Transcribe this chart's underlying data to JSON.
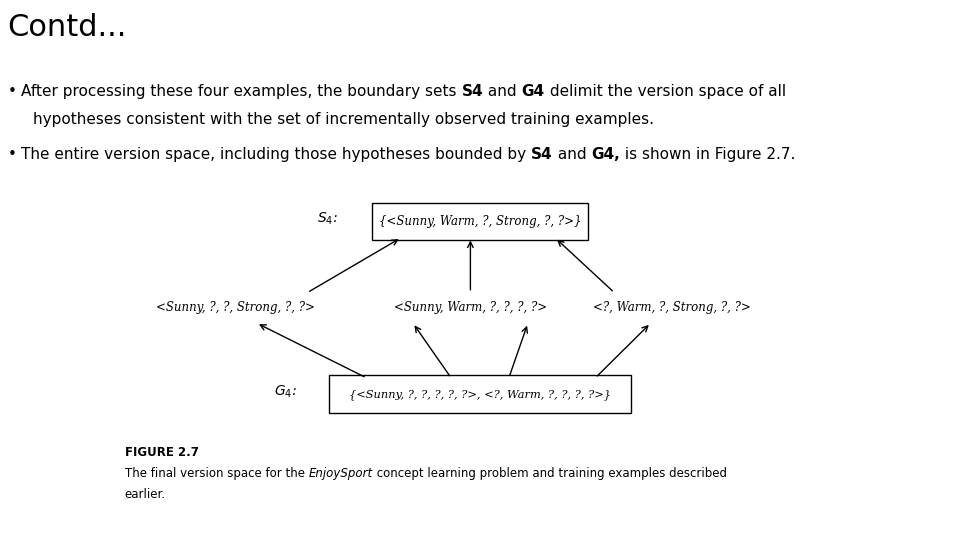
{
  "title": "Contd...",
  "background_color": "#ffffff",
  "text_color": "#000000",
  "s4_content": "{<Sunny, Warm, ?, Strong, ?, ?>}",
  "mid_left": "<Sunny, ?, ?, Strong, ?, ?>",
  "mid_center": "<Sunny, Warm, ?, ?, ?, ?>",
  "mid_right": "<?, Warm, ?, Strong, ?, ?>",
  "g4_content": "{<Sunny, ?, ?, ?, ?, ?>, <?, Warm, ?, ?, ?, ?>}",
  "figure_caption_bold": "FIGURE 2.7",
  "figure_caption_normal1": "The final version space for the ",
  "figure_caption_italic": "EnjoySport",
  "figure_caption_normal2": " concept learning problem and training examples described",
  "figure_caption_line2": "earlier.",
  "bullet1_pre": "After processing these four examples, the boundary sets ",
  "bullet1_b1": "S4",
  "bullet1_mid1": " and ",
  "bullet1_b2": "G4",
  "bullet1_post": " delimit the version space of all",
  "bullet1_line2": "hypotheses consistent with the set of incrementally observed training examples.",
  "bullet2_pre": "The entire version space, including those hypotheses bounded by ",
  "bullet2_b1": "S4",
  "bullet2_mid1": " and ",
  "bullet2_b2": "G4,",
  "bullet2_post": " is shown in Figure 2.7."
}
